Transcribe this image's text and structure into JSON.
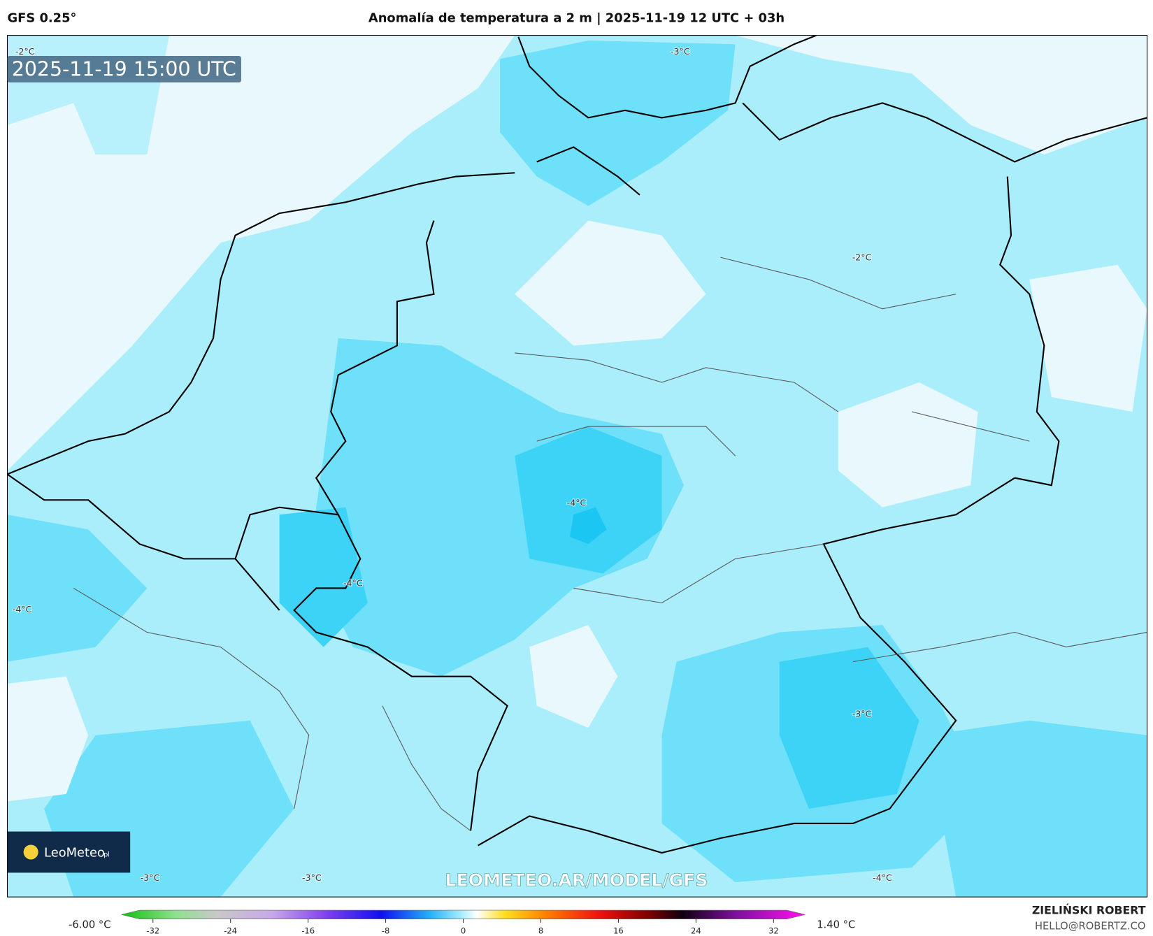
{
  "header": {
    "model": "GFS 0.25°",
    "title": "Anomalía de temperatura a 2 m | 2025-11-19 12 UTC + 03h"
  },
  "map": {
    "valid_time": "2025-11-19 15:00 UTC",
    "contour_labels": [
      "-2°C",
      "-3°C",
      "-2°C",
      "-4°C",
      "-4°C",
      "-4°C",
      "-3°C",
      "-3°C",
      "-3°C",
      "-4°C"
    ],
    "watermark": "LEOMETEO.AR/MODEL/GFS",
    "logo": "LeoMeteo",
    "logo_suffix": "pl"
  },
  "colorbar": {
    "min_label": "-6.00 °C",
    "max_label": "1.40 °C",
    "ticks": [
      -32,
      -24,
      -16,
      -8,
      0,
      8,
      16,
      24,
      32
    ]
  },
  "footer": {
    "author": "ZIELIŃSKI ROBERT",
    "email": "HELLO@ROBERTZ.CO"
  }
}
